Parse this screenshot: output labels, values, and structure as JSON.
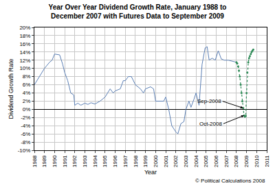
{
  "chart_data": {
    "type": "line",
    "title": "Year Over Year Dividend Growth Rate, January 1988 to\nDecember 2007 with Futures Data to September 2009",
    "x_label": "Year",
    "y_label": "Dividend Growth Rate",
    "source": "© Political Calculations 2008",
    "series": [
      {
        "color": "#5b7fb5",
        "line_style": "solid",
        "marker": "none",
        "x": [
          1988.0,
          1988.5,
          1989.0,
          1989.5,
          1989.75,
          1990.0,
          1990.5,
          1990.8,
          1991.0,
          1991.3,
          1991.6,
          1991.9,
          1992.0,
          1992.3,
          1992.6,
          1993.0,
          1993.3,
          1993.6,
          1994.0,
          1994.5,
          1995.0,
          1995.5,
          1995.8,
          1996.0,
          1996.5,
          1996.8,
          1997.0,
          1997.3,
          1997.6,
          1998.0,
          1998.5,
          1998.8,
          1999.0,
          1999.5,
          1999.8,
          2000.0,
          2000.5,
          2000.8,
          2001.0,
          2001.3,
          2001.6,
          2002.0,
          2002.2,
          2002.5,
          2002.8,
          2003.0,
          2003.3,
          2003.5,
          2003.8,
          2004.0,
          2004.3,
          2004.6,
          2004.9,
          2005.1,
          2005.3,
          2005.6,
          2005.9,
          2006.2,
          2006.5,
          2006.8,
          2007.2,
          2007.5,
          2008.0
        ],
        "values": [
          6,
          8,
          10,
          11.5,
          12,
          13.5,
          13.3,
          11,
          9,
          7,
          4,
          3.5,
          1,
          1.5,
          1,
          1.5,
          1.2,
          1.6,
          1.3,
          2,
          3,
          5,
          4,
          4.5,
          5,
          7,
          7,
          8,
          8,
          6,
          5,
          4,
          5,
          5.5,
          5,
          2,
          2,
          2,
          3,
          0,
          -4,
          -5.5,
          -6,
          -3.5,
          -3,
          0,
          2,
          0.5,
          2.5,
          4,
          1,
          11,
          15,
          15.3,
          12,
          12.5,
          12,
          14.3,
          12.3,
          12,
          12,
          11.8,
          11.5
        ]
      },
      {
        "color": "#2e8b57",
        "line_style": "dotted",
        "marker": "circle",
        "x": [
          2008.0,
          2008.08,
          2008.17,
          2008.25,
          2008.33,
          2008.42,
          2008.5,
          2008.58,
          2008.67,
          2008.75,
          2008.83,
          2008.92,
          2009.0,
          2009.08,
          2009.17,
          2009.25,
          2009.33,
          2009.42,
          2009.5,
          2009.58,
          2009.67
        ],
        "values": [
          11.5,
          11.2,
          10.5,
          9.5,
          8,
          6,
          4,
          2,
          0.3,
          -1.5,
          -1.8,
          -1.6,
          4,
          9,
          11.5,
          12.5,
          13,
          13.5,
          14,
          14.3,
          14.6
        ]
      }
    ],
    "annotations": [
      {
        "text": "Sep-2008",
        "x": 2008.67,
        "y": 0.3
      },
      {
        "text": "Oct-2008",
        "x": 2008.75,
        "y": -1.5
      }
    ],
    "xlim": [
      1988,
      2011
    ],
    "xticks": [
      1988,
      1989,
      1990,
      1991,
      1992,
      1993,
      1994,
      1995,
      1996,
      1997,
      1998,
      1999,
      2000,
      2001,
      2002,
      2003,
      2004,
      2005,
      2006,
      2007,
      2008,
      2009,
      2010,
      2011
    ],
    "ylim": [
      -10,
      20
    ],
    "yticks": [
      {
        "value": -10,
        "label": "-10%"
      },
      {
        "value": -8,
        "label": "-8%"
      },
      {
        "value": -6,
        "label": "-6%"
      },
      {
        "value": -4,
        "label": "-4%"
      },
      {
        "value": -2,
        "label": "-2%"
      },
      {
        "value": 0,
        "label": "0%"
      },
      {
        "value": 2,
        "label": "2%"
      },
      {
        "value": 4,
        "label": "4%"
      },
      {
        "value": 6,
        "label": "6%"
      },
      {
        "value": 8,
        "label": "8%"
      },
      {
        "value": 10,
        "label": "10%"
      },
      {
        "value": 12,
        "label": "12%"
      },
      {
        "value": 14,
        "label": "14%"
      },
      {
        "value": 16,
        "label": "16%"
      },
      {
        "value": 18,
        "label": "18%"
      },
      {
        "value": 20,
        "label": "20%"
      }
    ],
    "grid": true
  }
}
